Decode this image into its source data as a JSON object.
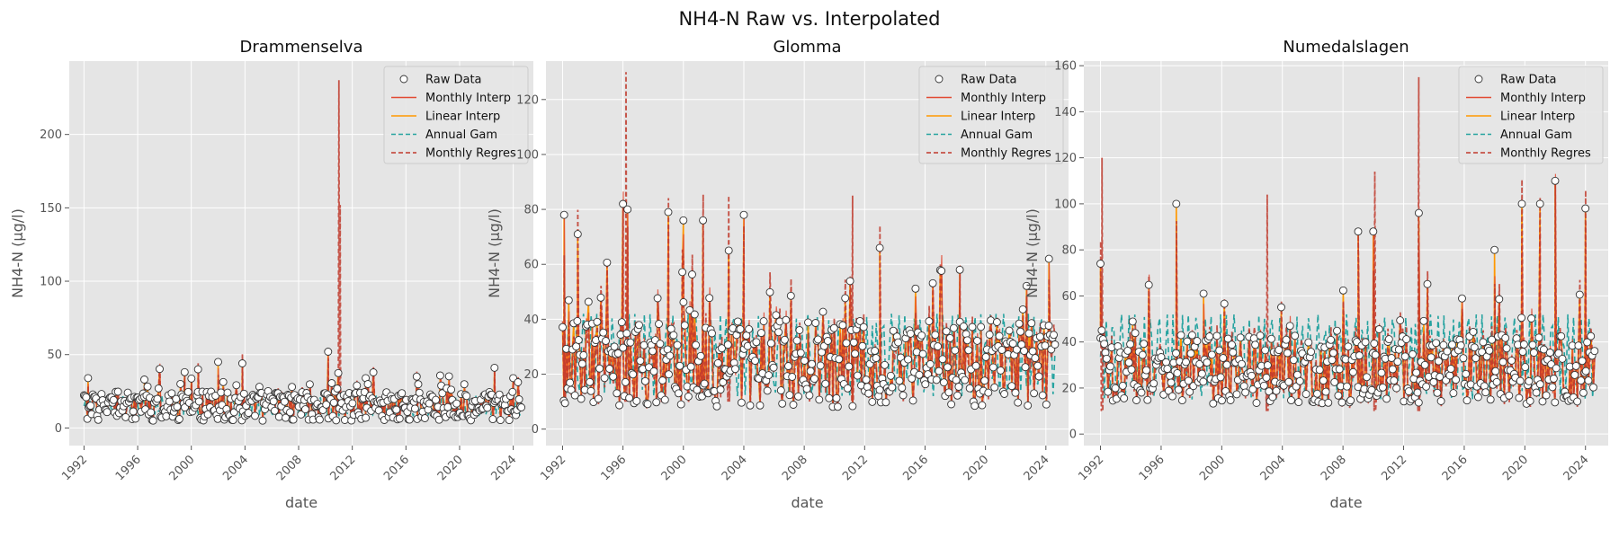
{
  "figure": {
    "suptitle": "NH4-N Raw vs. Interpolated"
  },
  "colors": {
    "raw_face": "#ffffff",
    "raw_edge": "#333333",
    "monthly_interp": "#e24a33",
    "linear_interp": "#ff9800",
    "annual_gam": "#26a3a0",
    "monthly_regres": "#c0392b",
    "panel_bg": "#e5e5e5",
    "grid": "#ffffff"
  },
  "chart_data": [
    {
      "type": "line",
      "title": "Drammenselva",
      "xlabel": "date",
      "ylabel": "NH4-N (µg/l)",
      "xlim": [
        1990.9,
        2025.5
      ],
      "xticks": [
        1992,
        1996,
        2000,
        2004,
        2008,
        2012,
        2016,
        2020,
        2024
      ],
      "ylim": [
        -12,
        250
      ],
      "yticks": [
        0,
        50,
        100,
        150,
        200
      ],
      "grid": true,
      "legend": "top-right",
      "legend_entries": [
        "Raw Data",
        "Monthly Interp",
        "Linear Interp",
        "Annual Gam",
        "Monthly Regres"
      ],
      "raw_x_range": [
        1992,
        2024.6
      ],
      "raw_level": 15,
      "raw_spread": 10,
      "raw_min": 1,
      "gam_range": [
        8,
        22
      ],
      "peaks": [
        {
          "x": 1992.3,
          "y": 34
        },
        {
          "x": 1996.5,
          "y": 33
        },
        {
          "x": 1999.5,
          "y": 38
        },
        {
          "x": 2000.5,
          "y": 40
        },
        {
          "x": 2002.0,
          "y": 45
        },
        {
          "x": 2003.8,
          "y": 44
        },
        {
          "x": 2007.5,
          "y": 28
        },
        {
          "x": 2010.2,
          "y": 52
        },
        {
          "x": 2013.0,
          "y": 34
        },
        {
          "x": 2016.8,
          "y": 35
        },
        {
          "x": 2022.6,
          "y": 41
        },
        {
          "x": 2024.0,
          "y": 34
        }
      ],
      "regres_peaks": [
        {
          "x": 2011.0,
          "y": 237
        },
        {
          "x": 2011.1,
          "y": 152
        }
      ]
    },
    {
      "type": "line",
      "title": "Glomma",
      "xlabel": "date",
      "ylabel": "NH4-N (µg/l)",
      "xlim": [
        1990.9,
        2025.5
      ],
      "xticks": [
        1992,
        1996,
        2000,
        2004,
        2008,
        2012,
        2016,
        2020,
        2024
      ],
      "ylim": [
        -6,
        134
      ],
      "yticks": [
        0,
        20,
        40,
        60,
        80,
        100,
        120
      ],
      "grid": true,
      "legend": "top-right",
      "legend_entries": [
        "Raw Data",
        "Monthly Interp",
        "Linear Interp",
        "Annual Gam",
        "Monthly Regres"
      ],
      "raw_x_range": [
        1992,
        2024.6
      ],
      "raw_level": 24,
      "raw_spread": 16,
      "raw_min": 2,
      "gam_range": [
        12,
        42
      ],
      "peaks": [
        {
          "x": 1992.1,
          "y": 78
        },
        {
          "x": 1993.0,
          "y": 71
        },
        {
          "x": 1996.0,
          "y": 82
        },
        {
          "x": 1996.3,
          "y": 80
        },
        {
          "x": 1999.0,
          "y": 79
        },
        {
          "x": 2000.0,
          "y": 76
        },
        {
          "x": 2001.3,
          "y": 76
        },
        {
          "x": 2004.0,
          "y": 78
        },
        {
          "x": 2003.0,
          "y": 65
        },
        {
          "x": 2013.0,
          "y": 66
        },
        {
          "x": 2018.3,
          "y": 58
        },
        {
          "x": 2024.2,
          "y": 62
        }
      ],
      "regres_peaks": [
        {
          "x": 1996.2,
          "y": 130
        },
        {
          "x": 2003.0,
          "y": 85
        },
        {
          "x": 2011.2,
          "y": 85
        }
      ]
    },
    {
      "type": "line",
      "title": "Numedalslagen",
      "xlabel": "date",
      "ylabel": "NH4-N (µg/l)",
      "xlim": [
        1990.9,
        2025.5
      ],
      "xticks": [
        1992,
        1996,
        2000,
        2004,
        2008,
        2012,
        2016,
        2020,
        2024
      ],
      "ylim": [
        -5,
        162
      ],
      "yticks": [
        0,
        20,
        40,
        60,
        80,
        100,
        120,
        140,
        160
      ],
      "grid": true,
      "legend": "top-right",
      "legend_entries": [
        "Raw Data",
        "Monthly Interp",
        "Linear Interp",
        "Annual Gam",
        "Monthly Regres"
      ],
      "raw_x_range": [
        1992,
        2024.6
      ],
      "raw_level": 28,
      "raw_spread": 15,
      "raw_min": 2,
      "gam_range": [
        15,
        52
      ],
      "peaks": [
        {
          "x": 1992.0,
          "y": 74
        },
        {
          "x": 1997.0,
          "y": 100
        },
        {
          "x": 1998.8,
          "y": 61
        },
        {
          "x": 2009.0,
          "y": 88
        },
        {
          "x": 2010.0,
          "y": 88
        },
        {
          "x": 2013.0,
          "y": 96
        },
        {
          "x": 2018.0,
          "y": 80
        },
        {
          "x": 2019.8,
          "y": 100
        },
        {
          "x": 2021.0,
          "y": 100
        },
        {
          "x": 2022.0,
          "y": 110
        },
        {
          "x": 2024.0,
          "y": 98
        }
      ],
      "regres_peaks": [
        {
          "x": 1992.1,
          "y": 120
        },
        {
          "x": 2003.0,
          "y": 104
        },
        {
          "x": 2013.0,
          "y": 155
        },
        {
          "x": 2010.1,
          "y": 114
        }
      ]
    }
  ]
}
